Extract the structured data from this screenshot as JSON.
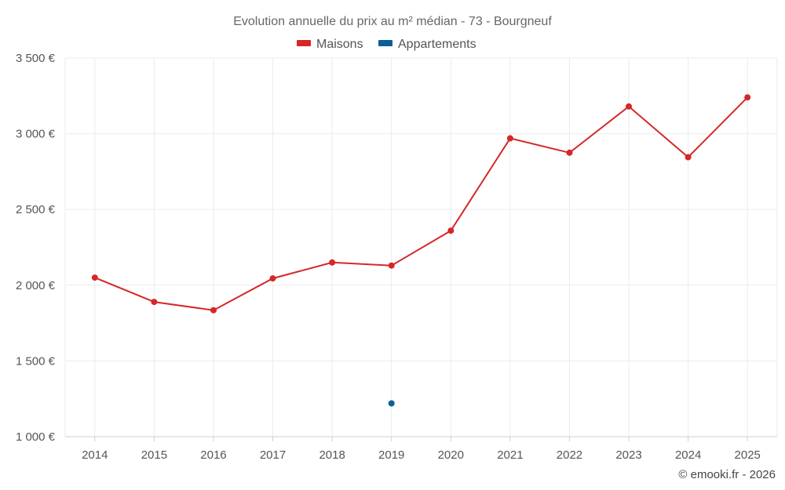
{
  "chart_data": {
    "type": "line",
    "title": "Evolution annuelle du prix au m² médian - 73 - Bourgneuf",
    "categories": [
      "2014",
      "2015",
      "2016",
      "2017",
      "2018",
      "2019",
      "2020",
      "2021",
      "2022",
      "2023",
      "2024",
      "2025"
    ],
    "ylim": [
      1000,
      3500
    ],
    "yticks": [
      1000,
      1500,
      2000,
      2500,
      3000,
      3500
    ],
    "ytick_labels": [
      "1 000 €",
      "1 500 €",
      "2 000 €",
      "2 500 €",
      "3 000 €",
      "3 500 €"
    ],
    "grid": true,
    "legend_position": "top-center",
    "series": [
      {
        "name": "Maisons",
        "color": "#d62728",
        "marker": "circle",
        "line": true,
        "values": [
          2050,
          1890,
          1835,
          2045,
          2150,
          2130,
          2360,
          2970,
          2875,
          3180,
          2845,
          3240
        ]
      },
      {
        "name": "Appartements",
        "color": "#0b5f99",
        "marker": "circle",
        "line": false,
        "values": [
          null,
          null,
          null,
          null,
          null,
          1220,
          null,
          null,
          null,
          null,
          null,
          null
        ]
      }
    ]
  },
  "credit": "© emooki.fr - 2026"
}
